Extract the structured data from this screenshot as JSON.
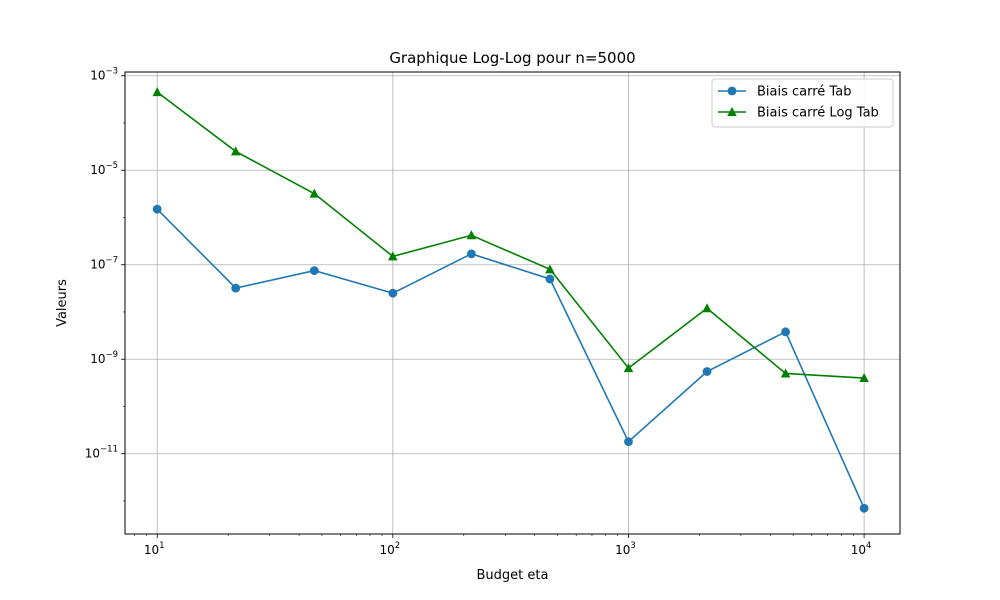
{
  "chart_data": {
    "type": "line",
    "title": "Graphique Log-Log pour n=5000",
    "xlabel": "Budget eta",
    "ylabel": "Valeurs",
    "xscale": "log",
    "yscale": "log",
    "xlim": [
      7.3,
      14200
    ],
    "ylim": [
      2e-13,
      0.0012
    ],
    "grid": true,
    "legend_position": "top-right",
    "x_ticks": [
      {
        "base": "10",
        "exp": "1",
        "value": 10
      },
      {
        "base": "10",
        "exp": "2",
        "value": 100
      },
      {
        "base": "10",
        "exp": "3",
        "value": 1000
      },
      {
        "base": "10",
        "exp": "4",
        "value": 10000
      }
    ],
    "y_ticks": [
      {
        "base": "10",
        "exp": "−11",
        "value": 1e-11
      },
      {
        "base": "10",
        "exp": "−9",
        "value": 1e-09
      },
      {
        "base": "10",
        "exp": "−7",
        "value": 1e-07
      },
      {
        "base": "10",
        "exp": "−5",
        "value": 1e-05
      },
      {
        "base": "10",
        "exp": "−3",
        "value": 0.001
      }
    ],
    "x": [
      10,
      21.54,
      46.42,
      100,
      215.44,
      464.16,
      1000,
      2154.4,
      4641.6,
      10000
    ],
    "series": [
      {
        "name": "Biais carré Tab",
        "color": "#1f77b4",
        "marker": "circle",
        "values": [
          1.5e-06,
          3.2e-08,
          7.5e-08,
          2.5e-08,
          1.7e-07,
          5e-08,
          1.8e-11,
          5.5e-10,
          3.8e-09,
          7e-13
        ]
      },
      {
        "name": "Biais carré Log Tab",
        "color": "#008000",
        "marker": "triangle",
        "values": [
          0.00045,
          2.5e-05,
          3.2e-06,
          1.5e-07,
          4.2e-07,
          8e-08,
          6.5e-10,
          1.2e-08,
          5e-10,
          4e-10
        ]
      }
    ]
  }
}
